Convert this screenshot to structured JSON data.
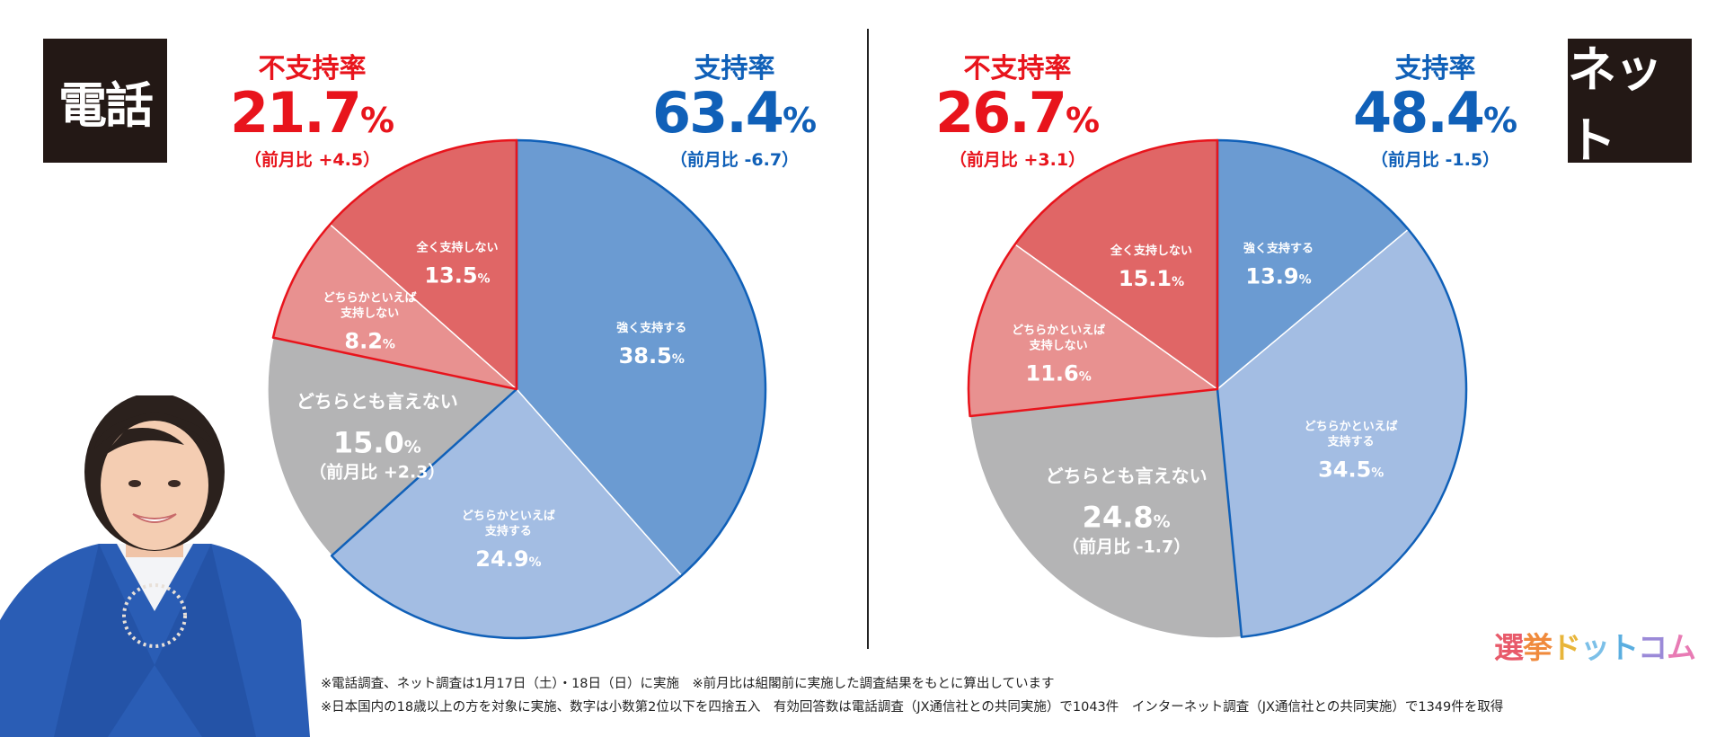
{
  "phone": {
    "badge": "電話",
    "disapproval": {
      "label": "不支持率",
      "value": "21.7",
      "unit": "%",
      "diff": "（前月比 +4.5）"
    },
    "approval": {
      "label": "支持率",
      "value": "63.4",
      "unit": "%",
      "diff": "（前月比 -6.7）"
    }
  },
  "net": {
    "badge": "ネット",
    "disapproval": {
      "label": "不支持率",
      "value": "26.7",
      "unit": "%",
      "diff": "（前月比 +3.1）"
    },
    "approval": {
      "label": "支持率",
      "value": "48.4",
      "unit": "%",
      "diff": "（前月比 -1.5）"
    }
  },
  "notes": [
    "※電話調査、ネット調査は1月17日（土）・18日（日）に実施　※前月比は組閣前に実施した調査結果をもとに算出しています",
    "※日本国内の18歳以上の方を対象に実施、数字は小数第2位以下を四捨五入　有効回答数は電話調査（JX通信社との共同実施）で1043件　インターネット調査（JX通信社との共同実施）で1349件を取得"
  ],
  "logo": [
    "選",
    "挙",
    "ド",
    "ッ",
    "ト",
    "コ",
    "ム"
  ],
  "colors": {
    "strong_support": "#6b9bd2",
    "somewhat_support": "#a3bde3",
    "neutral": "#b4b4b5",
    "somewhat_not": "#e89190",
    "not_at_all": "#e06666",
    "approval_outline": "#1060b8",
    "disapproval_outline": "#e8141c"
  },
  "chart_data": [
    {
      "type": "pie",
      "name": "電話",
      "slices": [
        {
          "label_lines": [
            "強く支持する"
          ],
          "value": 38.5,
          "display": "38.5",
          "unit": "%",
          "color": "#6b9bd2",
          "group": "approval"
        },
        {
          "label_lines": [
            "どちらかといえば",
            "支持する"
          ],
          "value": 24.9,
          "display": "24.9",
          "unit": "%",
          "color": "#a3bde3",
          "group": "approval"
        },
        {
          "label_lines": [
            "どちらとも言えない"
          ],
          "value": 15.0,
          "display": "15.0",
          "unit": "%",
          "sub": "（前月比 +2.3）",
          "color": "#b4b4b5",
          "group": "neutral"
        },
        {
          "label_lines": [
            "どちらかといえば",
            "支持しない"
          ],
          "value": 8.2,
          "display": "8.2",
          "unit": "%",
          "color": "#e89190",
          "group": "disapproval"
        },
        {
          "label_lines": [
            "全く支持しない"
          ],
          "value": 13.5,
          "display": "13.5",
          "unit": "%",
          "color": "#e06666",
          "group": "disapproval"
        }
      ]
    },
    {
      "type": "pie",
      "name": "ネット",
      "slices": [
        {
          "label_lines": [
            "強く支持する"
          ],
          "value": 13.9,
          "display": "13.9",
          "unit": "%",
          "color": "#6b9bd2",
          "group": "approval"
        },
        {
          "label_lines": [
            "どちらかといえば",
            "支持する"
          ],
          "value": 34.5,
          "display": "34.5",
          "unit": "%",
          "color": "#a3bde3",
          "group": "approval"
        },
        {
          "label_lines": [
            "どちらとも言えない"
          ],
          "value": 24.8,
          "display": "24.8",
          "unit": "%",
          "sub": "（前月比 -1.7）",
          "color": "#b4b4b5",
          "group": "neutral"
        },
        {
          "label_lines": [
            "どちらかといえば",
            "支持しない"
          ],
          "value": 11.6,
          "display": "11.6",
          "unit": "%",
          "color": "#e89190",
          "group": "disapproval"
        },
        {
          "label_lines": [
            "全く支持しない"
          ],
          "value": 15.1,
          "display": "15.1",
          "unit": "%",
          "color": "#e06666",
          "group": "disapproval"
        }
      ]
    }
  ]
}
